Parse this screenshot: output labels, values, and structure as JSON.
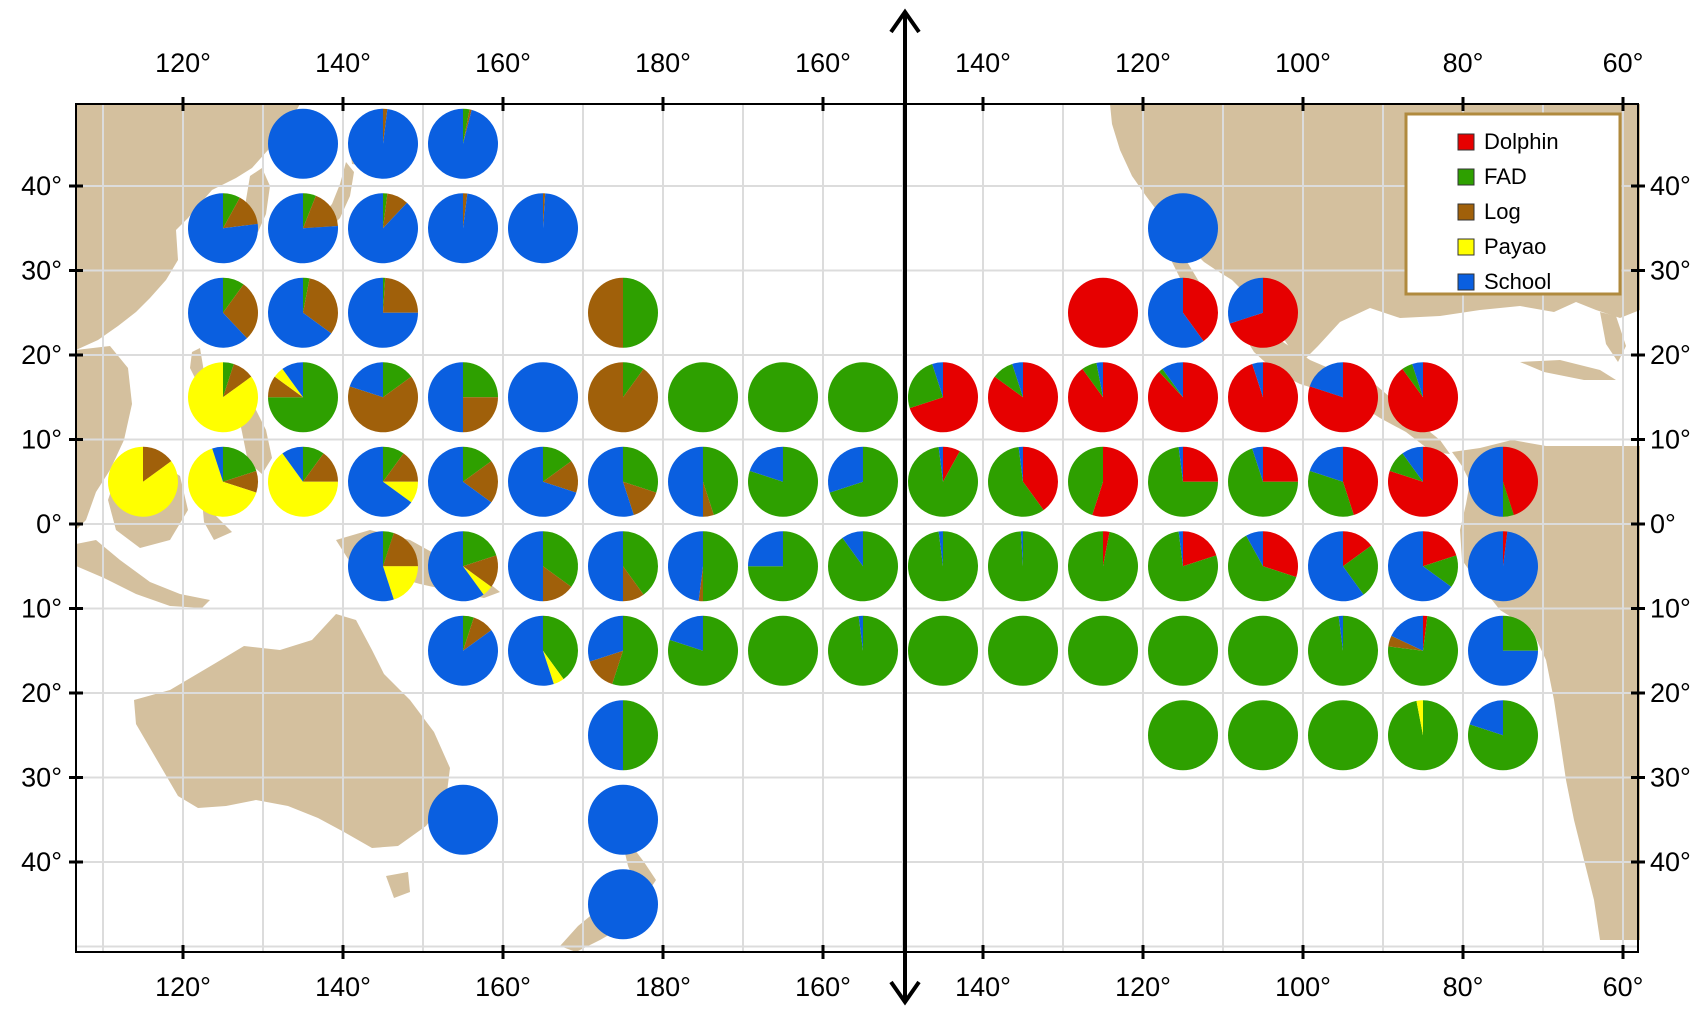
{
  "colors": {
    "land": "#d4c09e",
    "ocean": "#ffffff",
    "grid": "#e0e0e0",
    "frame": "#000000",
    "legend_border": "#b08a3e"
  },
  "axes": {
    "top_labels": [
      "120°",
      "140°",
      "160°",
      "180°",
      "160°",
      "140°",
      "120°",
      "100°",
      "80°",
      "60°"
    ],
    "bottom_labels": [
      "120°",
      "140°",
      "160°",
      "180°",
      "160°",
      "140°",
      "120°",
      "100°",
      "80°",
      "60°"
    ],
    "left_labels": [
      "40°",
      "30°",
      "20°",
      "10°",
      "0°",
      "10°",
      "20°",
      "30°",
      "40°"
    ],
    "right_labels": [
      "40°",
      "30°",
      "20°",
      "10°",
      "0°",
      "10°",
      "20°",
      "30°",
      "40°"
    ]
  },
  "legend": {
    "items": [
      {
        "label": "Dolphin",
        "color": "#e60000"
      },
      {
        "label": "FAD",
        "color": "#2ea000"
      },
      {
        "label": "Log",
        "color": "#a0600a"
      },
      {
        "label": "Payao",
        "color": "#ffff00"
      },
      {
        "label": "School",
        "color": "#0a5fe0"
      }
    ]
  },
  "chart_data": {
    "type": "pie",
    "categories": [
      "Dolphin",
      "FAD",
      "Log",
      "Payao",
      "School"
    ],
    "cell_size_deg": 10,
    "cells": [
      {
        "lon": 135,
        "lat": 45,
        "values": [
          0,
          0,
          0,
          0,
          100
        ]
      },
      {
        "lon": 145,
        "lat": 45,
        "values": [
          0,
          0,
          2,
          0,
          98
        ]
      },
      {
        "lon": 155,
        "lat": 45,
        "values": [
          0,
          3,
          1,
          0,
          96
        ]
      },
      {
        "lon": 125,
        "lat": 35,
        "values": [
          0,
          8,
          15,
          0,
          77
        ]
      },
      {
        "lon": 135,
        "lat": 35,
        "values": [
          0,
          6,
          18,
          0,
          76
        ]
      },
      {
        "lon": 145,
        "lat": 35,
        "values": [
          0,
          2,
          10,
          0,
          88
        ]
      },
      {
        "lon": 155,
        "lat": 35,
        "values": [
          0,
          0,
          2,
          0,
          98
        ]
      },
      {
        "lon": 165,
        "lat": 35,
        "values": [
          0,
          0,
          1,
          0,
          99
        ]
      },
      {
        "lon": -115,
        "lat": 35,
        "values": [
          0,
          0,
          0,
          0,
          100
        ]
      },
      {
        "lon": 125,
        "lat": 25,
        "values": [
          0,
          10,
          28,
          0,
          62
        ]
      },
      {
        "lon": 135,
        "lat": 25,
        "values": [
          0,
          3,
          32,
          0,
          65
        ]
      },
      {
        "lon": 145,
        "lat": 25,
        "values": [
          0,
          1,
          24,
          0,
          75
        ]
      },
      {
        "lon": 175,
        "lat": 25,
        "values": [
          0,
          50,
          50,
          0,
          0
        ]
      },
      {
        "lon": -125,
        "lat": 25,
        "values": [
          100,
          0,
          0,
          0,
          0
        ]
      },
      {
        "lon": -115,
        "lat": 25,
        "values": [
          40,
          0,
          0,
          0,
          60
        ]
      },
      {
        "lon": -105,
        "lat": 25,
        "values": [
          70,
          0,
          0,
          0,
          30
        ]
      },
      {
        "lon": 125,
        "lat": 15,
        "values": [
          0,
          5,
          10,
          85,
          0
        ]
      },
      {
        "lon": 135,
        "lat": 15,
        "values": [
          0,
          75,
          10,
          5,
          10
        ]
      },
      {
        "lon": 145,
        "lat": 15,
        "values": [
          0,
          15,
          65,
          0,
          20
        ]
      },
      {
        "lon": 155,
        "lat": 15,
        "values": [
          0,
          25,
          25,
          0,
          50
        ]
      },
      {
        "lon": 165,
        "lat": 15,
        "values": [
          0,
          0,
          0,
          0,
          100
        ]
      },
      {
        "lon": 175,
        "lat": 15,
        "values": [
          0,
          10,
          90,
          0,
          0
        ]
      },
      {
        "lon": -175,
        "lat": 15,
        "values": [
          0,
          100,
          0,
          0,
          0
        ]
      },
      {
        "lon": -165,
        "lat": 15,
        "values": [
          0,
          100,
          0,
          0,
          0
        ]
      },
      {
        "lon": -155,
        "lat": 15,
        "values": [
          0,
          100,
          0,
          0,
          0
        ]
      },
      {
        "lon": -145,
        "lat": 15,
        "values": [
          70,
          25,
          0,
          0,
          5
        ]
      },
      {
        "lon": -135,
        "lat": 15,
        "values": [
          85,
          10,
          0,
          0,
          5
        ]
      },
      {
        "lon": -125,
        "lat": 15,
        "values": [
          90,
          7,
          0,
          0,
          3
        ]
      },
      {
        "lon": -115,
        "lat": 15,
        "values": [
          88,
          2,
          0,
          0,
          10
        ]
      },
      {
        "lon": -105,
        "lat": 15,
        "values": [
          95,
          0,
          0,
          0,
          5
        ]
      },
      {
        "lon": -95,
        "lat": 15,
        "values": [
          80,
          0,
          0,
          0,
          20
        ]
      },
      {
        "lon": -85,
        "lat": 15,
        "values": [
          90,
          5,
          0,
          0,
          5
        ]
      },
      {
        "lon": 115,
        "lat": 5,
        "values": [
          0,
          0,
          15,
          85,
          0
        ]
      },
      {
        "lon": 125,
        "lat": 5,
        "values": [
          0,
          20,
          10,
          65,
          5
        ]
      },
      {
        "lon": 135,
        "lat": 5,
        "values": [
          0,
          10,
          15,
          65,
          10
        ]
      },
      {
        "lon": 145,
        "lat": 5,
        "values": [
          0,
          10,
          15,
          10,
          65
        ]
      },
      {
        "lon": 155,
        "lat": 5,
        "values": [
          0,
          15,
          20,
          0,
          65
        ]
      },
      {
        "lon": 165,
        "lat": 5,
        "values": [
          0,
          15,
          15,
          0,
          70
        ]
      },
      {
        "lon": 175,
        "lat": 5,
        "values": [
          0,
          30,
          15,
          0,
          55
        ]
      },
      {
        "lon": -175,
        "lat": 5,
        "values": [
          0,
          45,
          5,
          0,
          50
        ]
      },
      {
        "lon": -165,
        "lat": 5,
        "values": [
          0,
          80,
          0,
          0,
          20
        ]
      },
      {
        "lon": -155,
        "lat": 5,
        "values": [
          0,
          70,
          0,
          0,
          30
        ]
      },
      {
        "lon": -145,
        "lat": 5,
        "values": [
          8,
          90,
          0,
          0,
          2
        ]
      },
      {
        "lon": -135,
        "lat": 5,
        "values": [
          40,
          58,
          0,
          0,
          2
        ]
      },
      {
        "lon": -125,
        "lat": 5,
        "values": [
          55,
          45,
          0,
          0,
          0
        ]
      },
      {
        "lon": -115,
        "lat": 5,
        "values": [
          25,
          73,
          0,
          0,
          2
        ]
      },
      {
        "lon": -105,
        "lat": 5,
        "values": [
          25,
          70,
          0,
          0,
          5
        ]
      },
      {
        "lon": -95,
        "lat": 5,
        "values": [
          45,
          35,
          0,
          0,
          20
        ]
      },
      {
        "lon": -85,
        "lat": 5,
        "values": [
          80,
          10,
          0,
          0,
          10
        ]
      },
      {
        "lon": -75,
        "lat": 5,
        "values": [
          45,
          5,
          0,
          0,
          50
        ]
      },
      {
        "lon": 145,
        "lat": -5,
        "values": [
          0,
          5,
          20,
          20,
          55
        ]
      },
      {
        "lon": 155,
        "lat": -5,
        "values": [
          0,
          20,
          15,
          5,
          60
        ]
      },
      {
        "lon": 165,
        "lat": -5,
        "values": [
          0,
          35,
          15,
          0,
          50
        ]
      },
      {
        "lon": 175,
        "lat": -5,
        "values": [
          0,
          40,
          10,
          0,
          50
        ]
      },
      {
        "lon": -175,
        "lat": -5,
        "values": [
          0,
          50,
          2,
          0,
          48
        ]
      },
      {
        "lon": -165,
        "lat": -5,
        "values": [
          0,
          75,
          0,
          0,
          25
        ]
      },
      {
        "lon": -155,
        "lat": -5,
        "values": [
          0,
          90,
          0,
          0,
          10
        ]
      },
      {
        "lon": -145,
        "lat": -5,
        "values": [
          0,
          98,
          0,
          0,
          2
        ]
      },
      {
        "lon": -135,
        "lat": -5,
        "values": [
          0,
          99,
          0,
          0,
          1
        ]
      },
      {
        "lon": -125,
        "lat": -5,
        "values": [
          3,
          97,
          0,
          0,
          0
        ]
      },
      {
        "lon": -115,
        "lat": -5,
        "values": [
          20,
          78,
          0,
          0,
          2
        ]
      },
      {
        "lon": -105,
        "lat": -5,
        "values": [
          30,
          62,
          0,
          0,
          8
        ]
      },
      {
        "lon": -95,
        "lat": -5,
        "values": [
          15,
          25,
          0,
          0,
          60
        ]
      },
      {
        "lon": -85,
        "lat": -5,
        "values": [
          20,
          15,
          0,
          0,
          65
        ]
      },
      {
        "lon": -75,
        "lat": -5,
        "values": [
          2,
          0,
          0,
          0,
          98
        ]
      },
      {
        "lon": 155,
        "lat": -15,
        "values": [
          0,
          5,
          10,
          0,
          85
        ]
      },
      {
        "lon": 165,
        "lat": -15,
        "values": [
          0,
          40,
          0,
          5,
          55
        ]
      },
      {
        "lon": 175,
        "lat": -15,
        "values": [
          0,
          55,
          15,
          0,
          30
        ]
      },
      {
        "lon": -175,
        "lat": -15,
        "values": [
          0,
          80,
          0,
          0,
          20
        ]
      },
      {
        "lon": -165,
        "lat": -15,
        "values": [
          0,
          100,
          0,
          0,
          0
        ]
      },
      {
        "lon": -155,
        "lat": -15,
        "values": [
          0,
          98,
          0,
          0,
          2
        ]
      },
      {
        "lon": -145,
        "lat": -15,
        "values": [
          0,
          100,
          0,
          0,
          0
        ]
      },
      {
        "lon": -135,
        "lat": -15,
        "values": [
          0,
          100,
          0,
          0,
          0
        ]
      },
      {
        "lon": -125,
        "lat": -15,
        "values": [
          0,
          100,
          0,
          0,
          0
        ]
      },
      {
        "lon": -115,
        "lat": -15,
        "values": [
          0,
          100,
          0,
          0,
          0
        ]
      },
      {
        "lon": -105,
        "lat": -15,
        "values": [
          0,
          100,
          0,
          0,
          0
        ]
      },
      {
        "lon": -95,
        "lat": -15,
        "values": [
          0,
          98,
          0,
          0,
          2
        ]
      },
      {
        "lon": -85,
        "lat": -15,
        "values": [
          2,
          75,
          5,
          0,
          18
        ]
      },
      {
        "lon": -75,
        "lat": -15,
        "values": [
          0,
          25,
          0,
          0,
          75
        ]
      },
      {
        "lon": 175,
        "lat": -25,
        "values": [
          0,
          50,
          0,
          0,
          50
        ]
      },
      {
        "lon": -115,
        "lat": -25,
        "values": [
          0,
          100,
          0,
          0,
          0
        ]
      },
      {
        "lon": -105,
        "lat": -25,
        "values": [
          0,
          100,
          0,
          0,
          0
        ]
      },
      {
        "lon": -95,
        "lat": -25,
        "values": [
          0,
          100,
          0,
          0,
          0
        ]
      },
      {
        "lon": -85,
        "lat": -25,
        "values": [
          0,
          97,
          0,
          3,
          0
        ]
      },
      {
        "lon": -75,
        "lat": -25,
        "values": [
          0,
          80,
          0,
          0,
          20
        ]
      },
      {
        "lon": 155,
        "lat": -35,
        "values": [
          0,
          0,
          0,
          0,
          100
        ]
      },
      {
        "lon": 175,
        "lat": -35,
        "values": [
          0,
          0,
          0,
          0,
          100
        ]
      },
      {
        "lon": 175,
        "lat": -45,
        "values": [
          0,
          0,
          0,
          0,
          100
        ]
      }
    ]
  }
}
